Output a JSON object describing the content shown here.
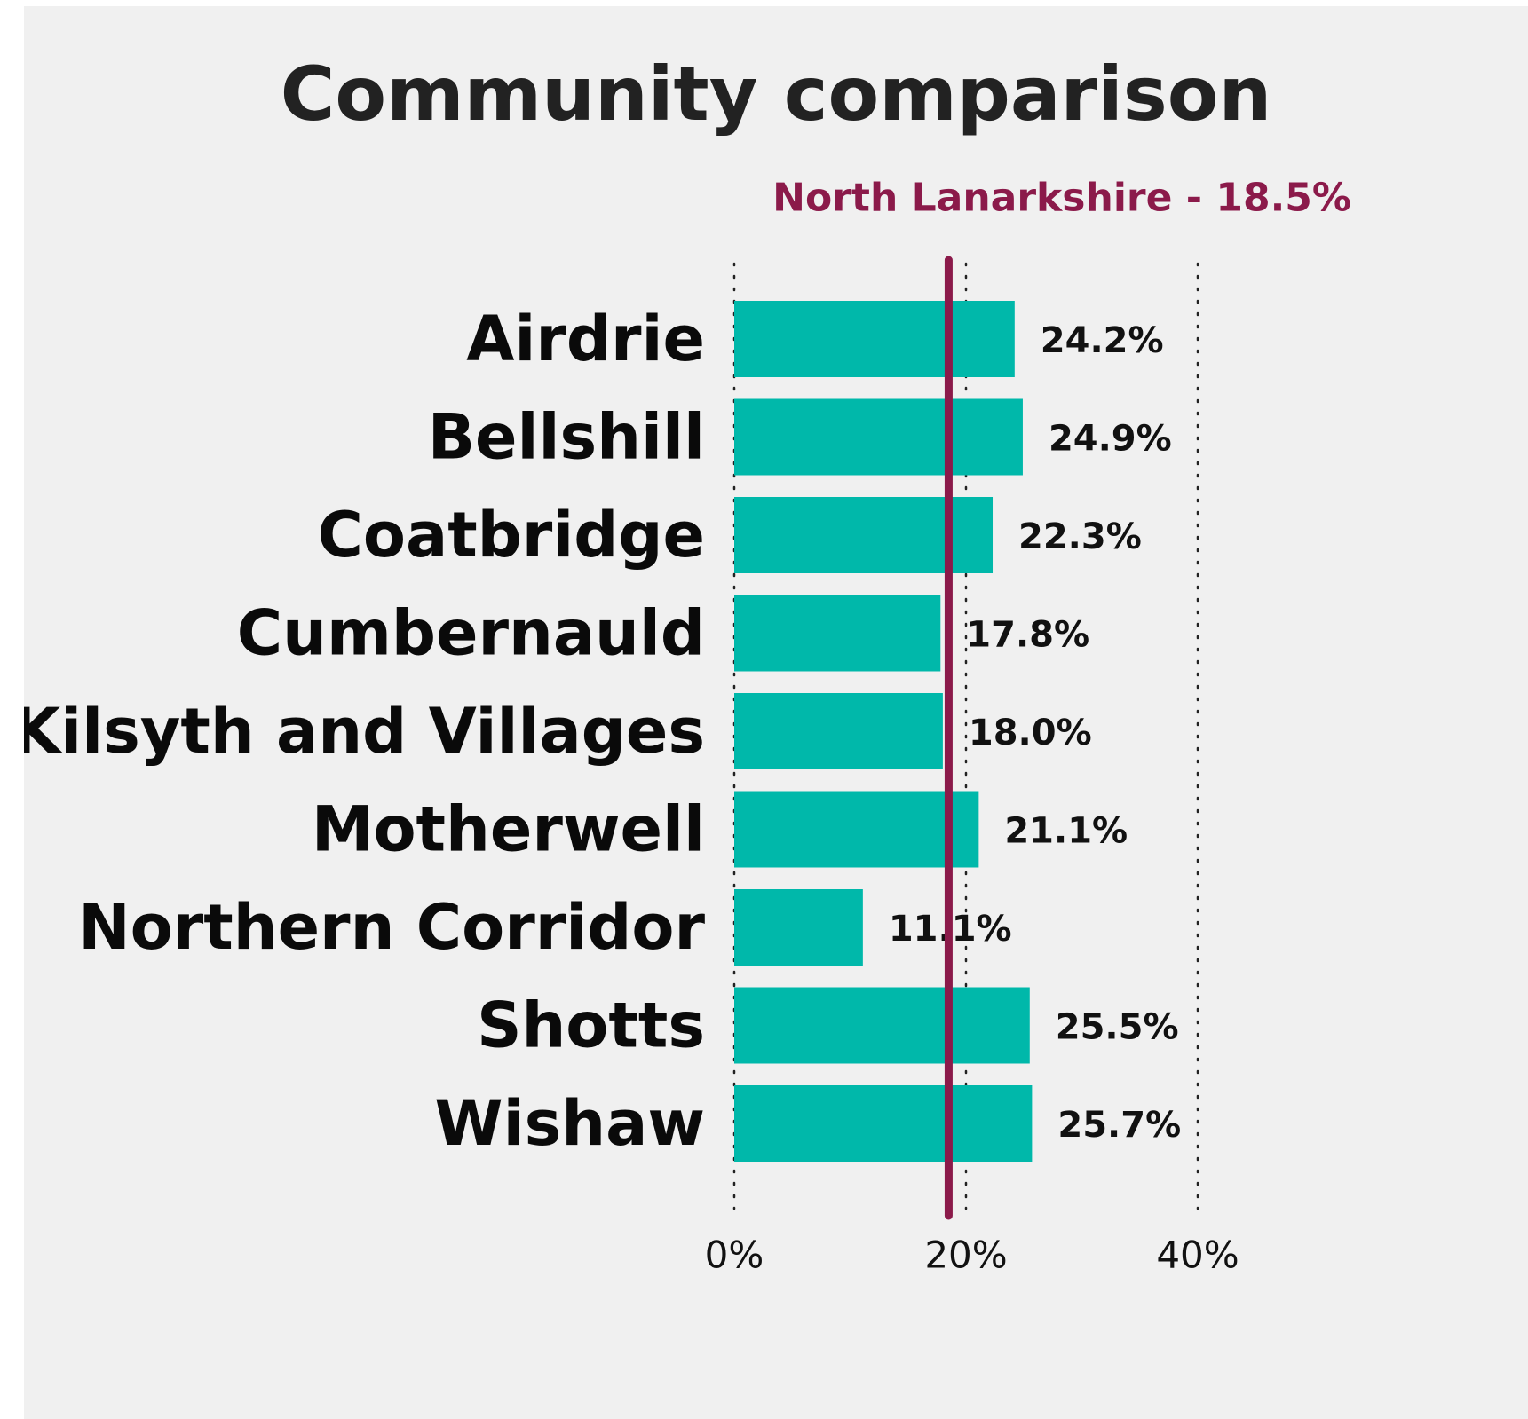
{
  "chart_data": {
    "type": "bar",
    "orientation": "horizontal",
    "title": "Community comparison",
    "categories": [
      "Airdrie",
      "Bellshill",
      "Coatbridge",
      "Cumbernauld",
      "Kilsyth and Villages",
      "Motherwell",
      "Northern Corridor",
      "Shotts",
      "Wishaw"
    ],
    "values": [
      24.2,
      24.9,
      22.3,
      17.8,
      18.0,
      21.1,
      11.1,
      25.5,
      25.7
    ],
    "value_labels": [
      "24.2%",
      "24.9%",
      "22.3%",
      "17.8%",
      "18.0%",
      "21.1%",
      "11.1%",
      "25.5%",
      "25.7%"
    ],
    "xlim": [
      0,
      40
    ],
    "x_ticks": [
      0,
      20,
      40
    ],
    "x_tick_labels": [
      "0%",
      "20%",
      "40%"
    ],
    "grid": "vertical dotted",
    "reference_line": {
      "value": 18.5,
      "label": "North Lanarkshire - 18.5%",
      "color": "#8b1a4a"
    },
    "bar_color": "#00b8aa",
    "background_color": "#f0f0f0"
  }
}
